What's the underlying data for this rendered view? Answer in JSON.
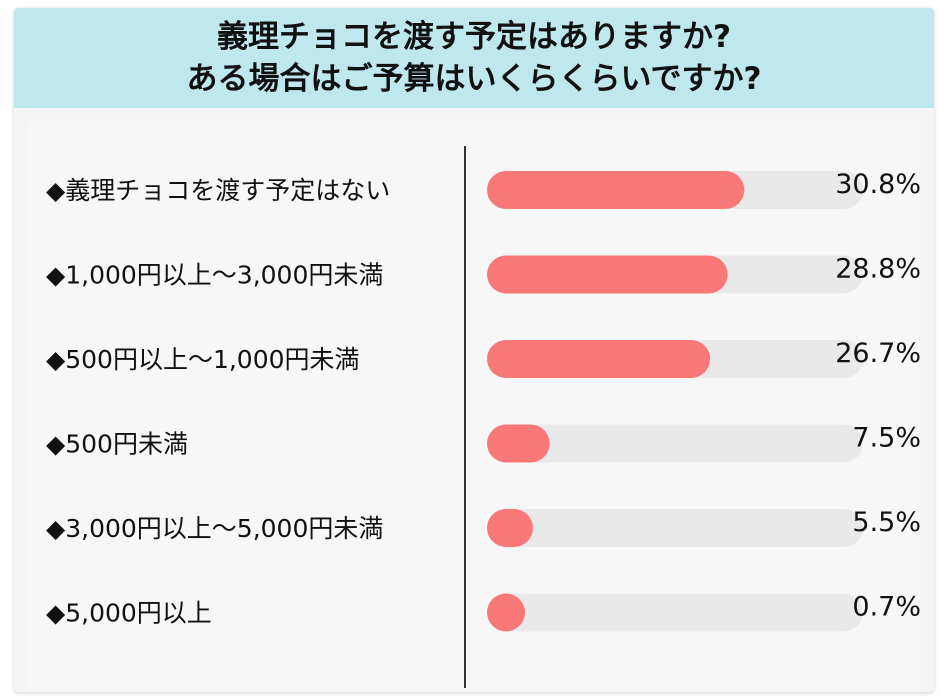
{
  "title_lines": [
    "義理チョコを渡す予定はありますか?",
    "ある場合はご予算はいくらくらいですか?"
  ],
  "chart_data": {
    "type": "bar",
    "orientation": "horizontal",
    "categories": [
      "◆義理チョコを渡す予定はない",
      "◆1,000円以上〜3,000円未満",
      "◆500円以上〜1,000円未満",
      "◆500円未満",
      "◆3,000円以上〜5,000円未満",
      "◆5,000円以上"
    ],
    "values": [
      30.8,
      28.8,
      26.7,
      7.5,
      5.5,
      0.7
    ],
    "value_labels": [
      "30.8%",
      "28.8%",
      "26.7%",
      "7.5%",
      "5.5%",
      "0.7%"
    ],
    "xlim": [
      0,
      45
    ],
    "colors": {
      "bar": "#f87878",
      "track": "#e9e9e9",
      "axis": "#333333",
      "text": "#111111"
    }
  }
}
